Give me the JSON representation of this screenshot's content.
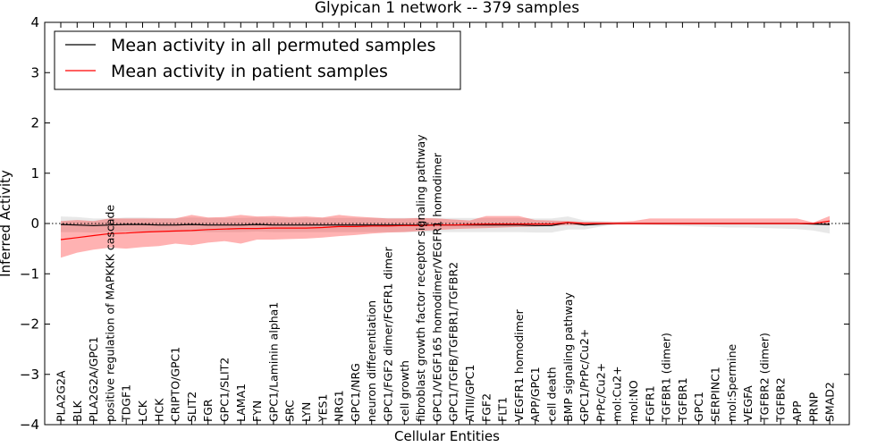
{
  "chart_data": {
    "type": "line",
    "title": "Glypican 1 network -- 379 samples",
    "xlabel": "Cellular Entities",
    "ylabel": "Inferred Activity",
    "ylim": [
      -4,
      4
    ],
    "yticks": [
      "−4",
      "−3",
      "−2",
      "−1",
      "0",
      "1",
      "2",
      "3",
      "4"
    ],
    "grid": false,
    "legend_position": "top-left",
    "categories": [
      "PLA2G2A",
      "BLK",
      "PLA2G2A/GPC1",
      "positive regulation of MAPKKK cascade",
      "TDGF1",
      "LCK",
      "HCK",
      "CRIPTO/GPC1",
      "SLIT2",
      "FGR",
      "GPC1/SLIT2",
      "LAMA1",
      "FYN",
      "GPC1/Laminin alpha1",
      "SRC",
      "LYN",
      "YES1",
      "NRG1",
      "GPC1/NRG",
      "neuron differentiation",
      "GPC1/FGF2 dimer/FGFR1 dimer",
      "cell growth",
      "fibroblast growth factor receptor signaling pathway",
      "GPC1/VEGF165 homodimer/VEGFR1 homodimer",
      "GPC1/TGFB/TGFBR1/TGFBR2",
      "ATIII/GPC1",
      "FGF2",
      "FLT1",
      "VEGFR1 homodimer",
      "APP/GPC1",
      "cell death",
      "BMP signaling pathway",
      "GPC1/PrPc/Cu2+",
      "PrPc/Cu2+",
      "mol:Cu2+",
      "mol:NO",
      "FGFR1",
      "TGFBR1 (dimer)",
      "TGFBR1",
      "GPC1",
      "SERPINC1",
      "mol:Spermine",
      "VEGFA",
      "TGFBR2 (dimer)",
      "TGFBR2",
      "APP",
      "PRNP",
      "SMAD2"
    ],
    "series": [
      {
        "name": "Mean activity in all permuted samples",
        "color": "#000000",
        "values": [
          -0.02,
          -0.03,
          -0.04,
          -0.03,
          -0.02,
          -0.02,
          -0.03,
          -0.03,
          -0.02,
          -0.03,
          -0.03,
          -0.03,
          -0.02,
          -0.03,
          -0.03,
          -0.03,
          -0.03,
          -0.03,
          -0.03,
          -0.03,
          -0.03,
          -0.03,
          -0.03,
          -0.03,
          -0.03,
          -0.03,
          -0.03,
          -0.03,
          -0.03,
          -0.04,
          -0.04,
          0.02,
          -0.03,
          -0.01,
          0.0,
          0.0,
          0.0,
          0.0,
          0.0,
          0.0,
          0.0,
          0.0,
          0.0,
          0.0,
          0.0,
          0.0,
          -0.01,
          -0.02
        ],
        "lower": [
          -0.17,
          -0.17,
          -0.18,
          -0.17,
          -0.16,
          -0.16,
          -0.17,
          -0.17,
          -0.16,
          -0.17,
          -0.17,
          -0.17,
          -0.16,
          -0.17,
          -0.17,
          -0.17,
          -0.17,
          -0.17,
          -0.17,
          -0.17,
          -0.17,
          -0.17,
          -0.17,
          -0.17,
          -0.17,
          -0.17,
          -0.17,
          -0.17,
          -0.17,
          -0.18,
          -0.18,
          -0.12,
          -0.12,
          -0.06,
          -0.02,
          -0.02,
          -0.03,
          -0.04,
          -0.05,
          -0.06,
          -0.07,
          -0.08,
          -0.08,
          -0.09,
          -0.1,
          -0.11,
          -0.14,
          -0.2
        ],
        "upper": [
          0.14,
          0.13,
          0.1,
          0.1,
          0.12,
          0.12,
          0.11,
          0.11,
          0.12,
          0.11,
          0.11,
          0.11,
          0.12,
          0.11,
          0.11,
          0.11,
          0.11,
          0.11,
          0.11,
          0.11,
          0.11,
          0.11,
          0.11,
          0.11,
          0.11,
          0.11,
          0.11,
          0.11,
          0.11,
          0.1,
          0.1,
          0.14,
          0.06,
          0.05,
          0.03,
          0.02,
          0.02,
          0.02,
          0.02,
          0.02,
          0.02,
          0.02,
          0.02,
          0.02,
          0.02,
          0.02,
          0.02,
          0.03
        ]
      },
      {
        "name": "Mean activity in patient samples",
        "color": "#ff0000",
        "values": [
          -0.32,
          -0.28,
          -0.24,
          -0.2,
          -0.19,
          -0.17,
          -0.16,
          -0.15,
          -0.14,
          -0.12,
          -0.11,
          -0.1,
          -0.1,
          -0.09,
          -0.09,
          -0.09,
          -0.08,
          -0.06,
          -0.06,
          -0.05,
          -0.05,
          -0.04,
          -0.04,
          -0.03,
          -0.03,
          -0.02,
          -0.01,
          -0.01,
          -0.01,
          -0.01,
          -0.01,
          0.02,
          0.0,
          0.0,
          0.0,
          0.0,
          0.0,
          0.0,
          0.0,
          0.0,
          0.0,
          0.0,
          0.0,
          0.0,
          0.0,
          0.0,
          0.0,
          0.05
        ],
        "lower": [
          -0.68,
          -0.58,
          -0.52,
          -0.48,
          -0.5,
          -0.47,
          -0.45,
          -0.4,
          -0.43,
          -0.38,
          -0.35,
          -0.4,
          -0.32,
          -0.32,
          -0.31,
          -0.3,
          -0.28,
          -0.25,
          -0.23,
          -0.2,
          -0.18,
          -0.17,
          -0.15,
          -0.13,
          -0.11,
          -0.1,
          -0.09,
          -0.08,
          -0.07,
          -0.06,
          -0.05,
          -0.03,
          -0.03,
          -0.02,
          -0.02,
          -0.02,
          -0.02,
          -0.02,
          -0.02,
          -0.02,
          -0.02,
          -0.02,
          -0.02,
          -0.02,
          -0.02,
          -0.02,
          -0.02,
          -0.03
        ],
        "upper": [
          0.05,
          0.07,
          0.05,
          0.1,
          0.1,
          0.1,
          0.1,
          0.1,
          0.17,
          0.12,
          0.13,
          0.17,
          0.14,
          0.15,
          0.13,
          0.14,
          0.12,
          0.17,
          0.14,
          0.12,
          0.1,
          0.1,
          0.11,
          0.1,
          0.08,
          0.06,
          0.15,
          0.15,
          0.15,
          0.07,
          0.06,
          0.05,
          0.03,
          0.03,
          0.03,
          0.05,
          0.1,
          0.1,
          0.1,
          0.1,
          0.1,
          0.1,
          0.1,
          0.1,
          0.1,
          0.1,
          0.02,
          0.15
        ]
      }
    ]
  }
}
